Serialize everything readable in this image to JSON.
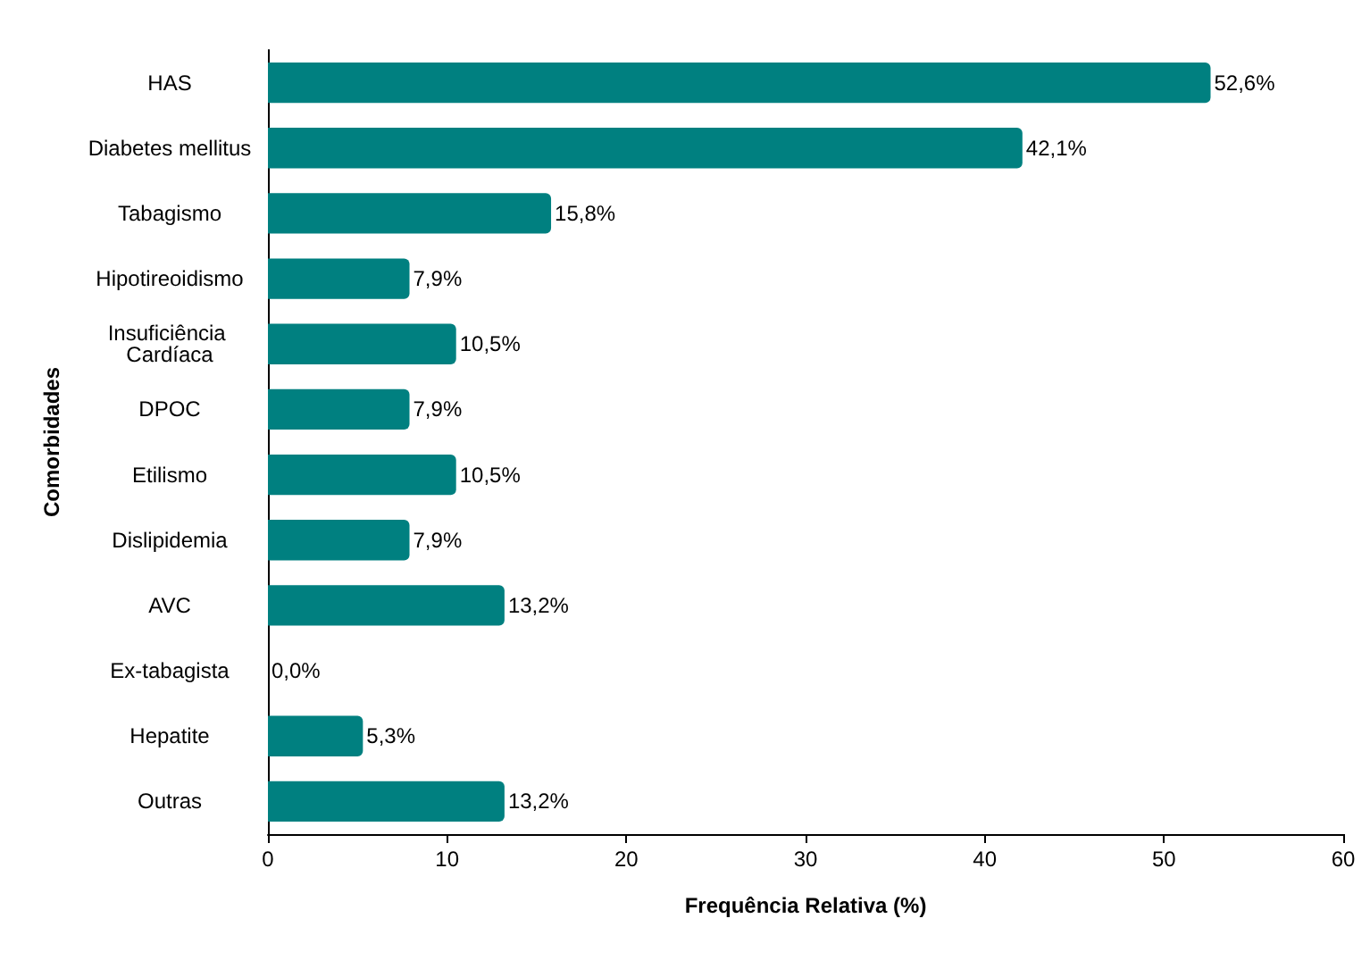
{
  "chart_data": {
    "type": "bar",
    "orientation": "horizontal",
    "xlabel": "Frequência Relativa (%)",
    "ylabel": "Comorbidades",
    "categories": [
      "HAS",
      "Diabetes mellitus",
      "Tabagismo",
      "Hipotireoidismo",
      "Insuficiência Cardíaca",
      "DPOC",
      "Etilismo",
      "Dislipidemia",
      "AVC",
      "Ex-tabagista",
      "Hepatite",
      "Outras"
    ],
    "values": [
      52.6,
      42.1,
      15.8,
      7.9,
      10.5,
      7.9,
      10.5,
      7.9,
      13.2,
      0.0,
      5.3,
      13.2
    ],
    "value_labels": [
      "52,6%",
      "42,1%",
      "15,8%",
      "7,9%",
      "10,5%",
      "7,9%",
      "10,5%",
      "7,9%",
      "13,2%",
      "0,0%",
      "5,3%",
      "13,2%"
    ],
    "color": "#008080",
    "xlim": [
      0,
      60
    ],
    "xticks": [
      0,
      10,
      20,
      30,
      40,
      50,
      60
    ],
    "grid": false
  }
}
